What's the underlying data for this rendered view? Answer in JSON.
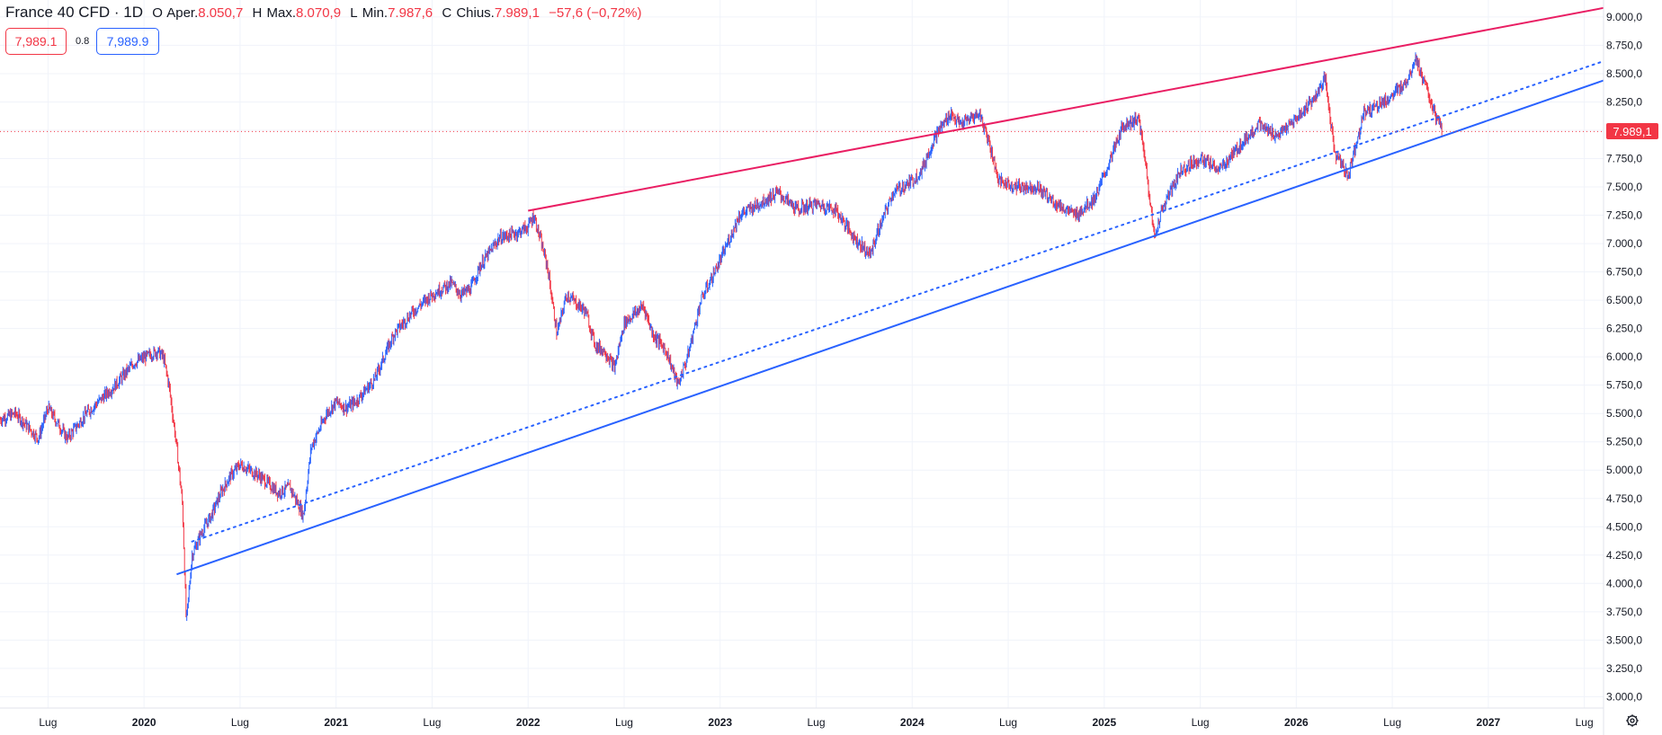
{
  "header": {
    "symbol": "France 40 CFD · 1D",
    "open_label": "O",
    "open_word": "Aper.",
    "open_value": "8.050,7",
    "high_label": "H",
    "high_word": "Max.",
    "high_value": "8.070,9",
    "low_label": "L",
    "low_word": "Min.",
    "low_value": "7.987,6",
    "close_label": "C",
    "close_word": "Chius.",
    "close_value": "7.989,1",
    "change": "−57,6 (−0,72%)"
  },
  "trade": {
    "sell_price": "7,989.1",
    "spread": "0.8",
    "buy_price": "7,989.9"
  },
  "last_price_label": "7.989,1",
  "colors": {
    "up": "#2962ff",
    "down": "#f23645",
    "resistance_line": "#e91e63",
    "support_line": "#2962ff",
    "grid": "#f0f3fa",
    "axis_text": "#131722"
  },
  "icons": {
    "settings": "gear-icon"
  },
  "chart_data": {
    "type": "candlestick",
    "timeframe": "1D",
    "ylim": [
      2900,
      9150
    ],
    "xlim": [
      2019.25,
      2027.6
    ],
    "grid": true,
    "y_ticks": [
      {
        "value": 9000,
        "label": "9.000,0"
      },
      {
        "value": 8750,
        "label": "8.750,0"
      },
      {
        "value": 8500,
        "label": "8.500,0"
      },
      {
        "value": 8250,
        "label": "8.250,0"
      },
      {
        "value": 8000,
        "label": "8.000,0"
      },
      {
        "value": 7750,
        "label": "7.750,0"
      },
      {
        "value": 7500,
        "label": "7.500,0"
      },
      {
        "value": 7250,
        "label": "7.250,0"
      },
      {
        "value": 7000,
        "label": "7.000,0"
      },
      {
        "value": 6750,
        "label": "6.750,0"
      },
      {
        "value": 6500,
        "label": "6.500,0"
      },
      {
        "value": 6250,
        "label": "6.250,0"
      },
      {
        "value": 6000,
        "label": "6.000,0"
      },
      {
        "value": 5750,
        "label": "5.750,0"
      },
      {
        "value": 5500,
        "label": "5.500,0"
      },
      {
        "value": 5250,
        "label": "5.250,0"
      },
      {
        "value": 5000,
        "label": "5.000,0"
      },
      {
        "value": 4750,
        "label": "4.750,0"
      },
      {
        "value": 4500,
        "label": "4.500,0"
      },
      {
        "value": 4250,
        "label": "4.250,0"
      },
      {
        "value": 4000,
        "label": "4.000,0"
      },
      {
        "value": 3750,
        "label": "3.750,0"
      },
      {
        "value": 3500,
        "label": "3.500,0"
      },
      {
        "value": 3250,
        "label": "3.250,0"
      },
      {
        "value": 3000,
        "label": "3.000,0"
      }
    ],
    "x_ticks": [
      {
        "value": 2019.5,
        "label": "Lug",
        "bold": false
      },
      {
        "value": 2020.0,
        "label": "2020",
        "bold": true
      },
      {
        "value": 2020.5,
        "label": "Lug",
        "bold": false
      },
      {
        "value": 2021.0,
        "label": "2021",
        "bold": true
      },
      {
        "value": 2021.5,
        "label": "Lug",
        "bold": false
      },
      {
        "value": 2022.0,
        "label": "2022",
        "bold": true
      },
      {
        "value": 2022.5,
        "label": "Lug",
        "bold": false
      },
      {
        "value": 2023.0,
        "label": "2023",
        "bold": true
      },
      {
        "value": 2023.5,
        "label": "Lug",
        "bold": false
      },
      {
        "value": 2024.0,
        "label": "2024",
        "bold": true
      },
      {
        "value": 2024.5,
        "label": "Lug",
        "bold": false
      },
      {
        "value": 2025.0,
        "label": "2025",
        "bold": true
      },
      {
        "value": 2025.5,
        "label": "Lug",
        "bold": false
      },
      {
        "value": 2026.0,
        "label": "2026",
        "bold": true
      },
      {
        "value": 2026.5,
        "label": "Lug",
        "bold": false
      },
      {
        "value": 2027.0,
        "label": "2027",
        "bold": true
      },
      {
        "value": 2027.5,
        "label": "Lug",
        "bold": false
      }
    ],
    "price_path": [
      [
        2019.25,
        5450
      ],
      [
        2019.33,
        5500
      ],
      [
        2019.45,
        5280
      ],
      [
        2019.5,
        5550
      ],
      [
        2019.6,
        5280
      ],
      [
        2019.7,
        5500
      ],
      [
        2019.85,
        5750
      ],
      [
        2019.95,
        5950
      ],
      [
        2020.07,
        6050
      ],
      [
        2020.1,
        6000
      ],
      [
        2020.13,
        5750
      ],
      [
        2020.17,
        5200
      ],
      [
        2020.2,
        4700
      ],
      [
        2020.22,
        3650
      ],
      [
        2020.25,
        4250
      ],
      [
        2020.3,
        4450
      ],
      [
        2020.35,
        4600
      ],
      [
        2020.4,
        4800
      ],
      [
        2020.45,
        4950
      ],
      [
        2020.5,
        5050
      ],
      [
        2020.6,
        4950
      ],
      [
        2020.7,
        4800
      ],
      [
        2020.76,
        4850
      ],
      [
        2020.83,
        4600
      ],
      [
        2020.87,
        5200
      ],
      [
        2020.95,
        5500
      ],
      [
        2021.0,
        5600
      ],
      [
        2021.05,
        5550
      ],
      [
        2021.1,
        5600
      ],
      [
        2021.2,
        5800
      ],
      [
        2021.3,
        6200
      ],
      [
        2021.4,
        6400
      ],
      [
        2021.5,
        6550
      ],
      [
        2021.6,
        6650
      ],
      [
        2021.65,
        6550
      ],
      [
        2021.7,
        6600
      ],
      [
        2021.75,
        6800
      ],
      [
        2021.85,
        7050
      ],
      [
        2021.95,
        7100
      ],
      [
        2022.0,
        7150
      ],
      [
        2022.03,
        7250
      ],
      [
        2022.1,
        6800
      ],
      [
        2022.15,
        6200
      ],
      [
        2022.2,
        6550
      ],
      [
        2022.3,
        6400
      ],
      [
        2022.35,
        6100
      ],
      [
        2022.4,
        6050
      ],
      [
        2022.45,
        5900
      ],
      [
        2022.5,
        6300
      ],
      [
        2022.6,
        6450
      ],
      [
        2022.65,
        6200
      ],
      [
        2022.72,
        6050
      ],
      [
        2022.78,
        5750
      ],
      [
        2022.83,
        6000
      ],
      [
        2022.9,
        6500
      ],
      [
        2023.0,
        6850
      ],
      [
        2023.1,
        7250
      ],
      [
        2023.2,
        7350
      ],
      [
        2023.3,
        7450
      ],
      [
        2023.4,
        7300
      ],
      [
        2023.5,
        7350
      ],
      [
        2023.6,
        7300
      ],
      [
        2023.7,
        7050
      ],
      [
        2023.78,
        6900
      ],
      [
        2023.82,
        7100
      ],
      [
        2023.9,
        7450
      ],
      [
        2024.0,
        7550
      ],
      [
        2024.05,
        7650
      ],
      [
        2024.12,
        7950
      ],
      [
        2024.2,
        8150
      ],
      [
        2024.25,
        8050
      ],
      [
        2024.35,
        8150
      ],
      [
        2024.4,
        7900
      ],
      [
        2024.45,
        7550
      ],
      [
        2024.55,
        7500
      ],
      [
        2024.65,
        7500
      ],
      [
        2024.75,
        7350
      ],
      [
        2024.85,
        7250
      ],
      [
        2024.95,
        7400
      ],
      [
        2025.0,
        7600
      ],
      [
        2025.1,
        8050
      ],
      [
        2025.18,
        8100
      ],
      [
        2025.22,
        7650
      ],
      [
        2025.26,
        7050
      ],
      [
        2025.3,
        7300
      ],
      [
        2025.4,
        7650
      ],
      [
        2025.5,
        7750
      ],
      [
        2025.6,
        7650
      ],
      [
        2025.7,
        7850
      ],
      [
        2025.8,
        8050
      ],
      [
        2025.9,
        7950
      ],
      [
        2026.0,
        8100
      ],
      [
        2026.1,
        8300
      ],
      [
        2026.15,
        8450
      ],
      [
        2026.2,
        7800
      ],
      [
        2026.27,
        7600
      ],
      [
        2026.35,
        8150
      ],
      [
        2026.45,
        8250
      ],
      [
        2026.5,
        8300
      ],
      [
        2026.58,
        8450
      ],
      [
        2026.62,
        8650
      ],
      [
        2026.68,
        8350
      ],
      [
        2026.73,
        8100
      ],
      [
        2026.76,
        7990
      ]
    ],
    "trendlines": [
      {
        "name": "",
        "style": "solid",
        "color": "#e91e63",
        "from": [
          2022.0,
          7290
        ],
        "to": [
          2027.6,
          9080
        ]
      },
      {
        "name": "",
        "style": "solid",
        "color": "#2962ff",
        "from": [
          2020.17,
          4080
        ],
        "to": [
          2027.6,
          8440
        ]
      },
      {
        "name": "",
        "style": "dotted",
        "color": "#2962ff",
        "from": [
          2020.25,
          4370
        ],
        "to": [
          2027.6,
          8610
        ]
      }
    ],
    "last_price": 7989.1
  }
}
